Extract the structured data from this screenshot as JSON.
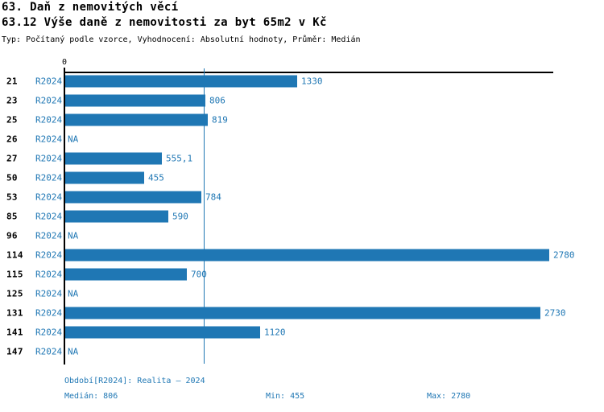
{
  "header": {
    "title": "63. Daň z nemovitých věcí",
    "subtitle": "63.12 Výše daně z nemovitosti za byt 65m2 v Kč",
    "meta": "Typ: Počítaný podle vzorce, Vyhodnocení: Absolutní hodnoty, Průměr: Medián"
  },
  "chart_data": {
    "type": "bar",
    "orientation": "horizontal",
    "title": "63. Daň z nemovitých věcí",
    "subtitle": "63.12 Výše daně z nemovitosti za byt 65m2 v Kč",
    "categories": [
      "21",
      "23",
      "25",
      "26",
      "27",
      "50",
      "53",
      "85",
      "96",
      "114",
      "115",
      "125",
      "131",
      "141",
      "147"
    ],
    "series": [
      {
        "name": "R2024",
        "values": [
          1330,
          806,
          819,
          null,
          555.1,
          455,
          784,
          590,
          null,
          2780,
          700,
          null,
          2730,
          1120,
          null
        ]
      }
    ],
    "value_labels": [
      "1330",
      "806",
      "819",
      "NA",
      "555,1",
      "455",
      "784",
      "590",
      "NA",
      "2780",
      "700",
      "NA",
      "2730",
      "1120",
      "NA"
    ],
    "na_label": "NA",
    "axis_origin_label": "0",
    "xlim": [
      0,
      2810
    ],
    "median_value": 806,
    "grid": false,
    "legend_position": "none",
    "reference_line": "median"
  },
  "footer": {
    "period": "Období[R2024]: Realita – 2024",
    "median": "Medián: 806",
    "min": "Min: 455",
    "max": "Max: 2780"
  },
  "colors": {
    "bar": "#1f77b4",
    "accent_text": "#1f77b4",
    "text": "#000000",
    "background": "#ffffff"
  }
}
